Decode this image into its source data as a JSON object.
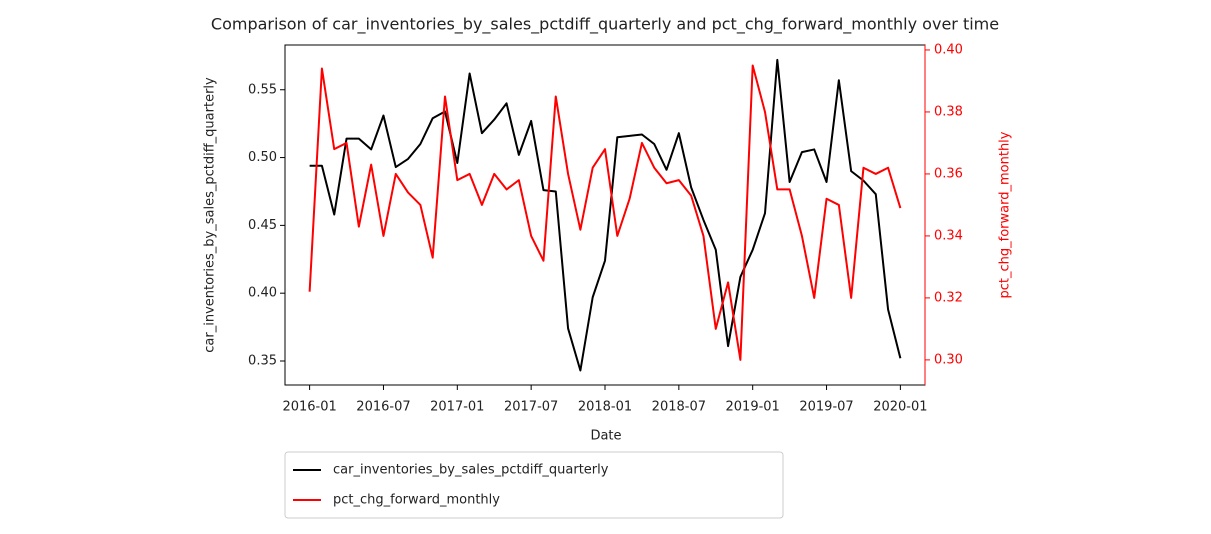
{
  "chart_data": {
    "type": "line",
    "title": "Comparison of car_inventories_by_sales_pctdiff_quarterly and pct_chg_forward_monthly over time",
    "x_label": "Date",
    "y_label": "car_inventories_by_sales_pctdiff_quarterly",
    "y2_label": "pct_chg_forward_monthly",
    "x": [
      "2016-01",
      "2016-02",
      "2016-03",
      "2016-04",
      "2016-05",
      "2016-06",
      "2016-07",
      "2016-08",
      "2016-09",
      "2016-10",
      "2016-11",
      "2016-12",
      "2017-01",
      "2017-02",
      "2017-03",
      "2017-04",
      "2017-05",
      "2017-06",
      "2017-07",
      "2017-08",
      "2017-09",
      "2017-10",
      "2017-11",
      "2017-12",
      "2018-01",
      "2018-02",
      "2018-03",
      "2018-04",
      "2018-05",
      "2018-06",
      "2018-07",
      "2018-08",
      "2018-09",
      "2018-10",
      "2018-11",
      "2018-12",
      "2019-01",
      "2019-02",
      "2019-03",
      "2019-04",
      "2019-05",
      "2019-06",
      "2019-07",
      "2019-08",
      "2019-09",
      "2019-10",
      "2019-11",
      "2019-12",
      "2020-01"
    ],
    "series": [
      {
        "name": "car_inventories_by_sales_pctdiff_quarterly",
        "color": "#000000",
        "axis": "y",
        "values": [
          0.494,
          0.494,
          0.458,
          0.514,
          0.514,
          0.506,
          0.531,
          0.493,
          0.499,
          0.51,
          0.529,
          0.534,
          0.496,
          0.562,
          0.518,
          0.528,
          0.54,
          0.502,
          0.527,
          0.476,
          0.475,
          0.374,
          0.343,
          0.397,
          0.424,
          0.515,
          0.516,
          0.517,
          0.51,
          0.491,
          0.518,
          0.478,
          0.454,
          0.432,
          0.361,
          0.412,
          0.432,
          0.459,
          0.572,
          0.482,
          0.504,
          0.506,
          0.482,
          0.557,
          0.49,
          0.483,
          0.473,
          0.388,
          0.352
        ]
      },
      {
        "name": "pct_chg_forward_monthly",
        "color": "#ff0000",
        "axis": "y2",
        "values": [
          0.322,
          0.394,
          0.368,
          0.37,
          0.343,
          0.363,
          0.34,
          0.36,
          0.354,
          0.35,
          0.333,
          0.385,
          0.358,
          0.36,
          0.35,
          0.36,
          0.355,
          0.358,
          0.34,
          0.332,
          0.385,
          0.36,
          0.342,
          0.362,
          0.368,
          0.34,
          0.352,
          0.37,
          0.362,
          0.357,
          0.358,
          0.353,
          0.34,
          0.31,
          0.325,
          0.3,
          0.395,
          0.38,
          0.355,
          0.355,
          0.34,
          0.32,
          0.352,
          0.35,
          0.32,
          0.362,
          0.36,
          0.362,
          0.349
        ]
      }
    ],
    "xlim": [
      "2015-11",
      "2020-03"
    ],
    "xticks": [
      "2016-01",
      "2016-07",
      "2017-01",
      "2017-07",
      "2018-01",
      "2018-07",
      "2019-01",
      "2019-07",
      "2020-01"
    ],
    "ylim": [
      0.3323,
      0.583
    ],
    "yticks": [
      0.35,
      {
        "value": 0.4,
        "label": "0.40"
      },
      0.45,
      {
        "value": 0.5,
        "label": "0.50"
      },
      0.55
    ],
    "y2lim": [
      0.2919,
      0.4016
    ],
    "y2ticks": [
      {
        "value": 0.3,
        "label": "0.30"
      },
      0.32,
      0.34,
      0.36,
      0.38,
      {
        "value": 0.4,
        "label": "0.40"
      }
    ],
    "y2_color": "#ff0000",
    "legend": "below-left",
    "grid": false
  }
}
